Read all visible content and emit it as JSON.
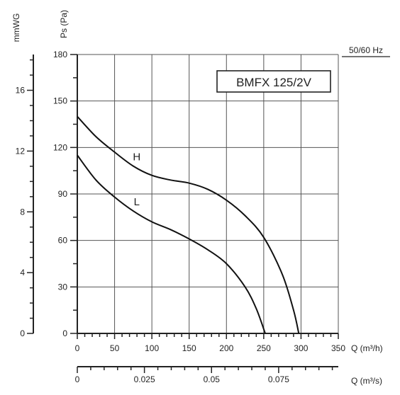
{
  "chart_data": {
    "type": "line",
    "title": "BMFX 125/2V",
    "frequency_label": "50/60 Hz",
    "y_left_unit": "mmWG",
    "ylabel": "Ps (Pa)",
    "xlabel": "Q (m³/h)",
    "x2label": "Q (m³/s)",
    "xlim": [
      0,
      350
    ],
    "ylim": [
      0,
      180
    ],
    "x_ticks": [
      0,
      50,
      100,
      150,
      200,
      250,
      300,
      350
    ],
    "y_ticks": [
      0,
      30,
      60,
      90,
      120,
      150,
      180
    ],
    "mmwg_ticks": [
      0,
      4,
      8,
      12,
      16
    ],
    "m3s_ticks": [
      "0",
      "0.025",
      "0.05",
      "0.075"
    ],
    "m3s_tick_values": [
      0,
      0.025,
      0.05,
      0.075
    ],
    "grid": true,
    "series": [
      {
        "name": "H",
        "x": [
          0,
          25,
          50,
          75,
          100,
          125,
          150,
          175,
          200,
          225,
          250,
          275,
          290,
          297
        ],
        "y": [
          140,
          127,
          117,
          108,
          102,
          99,
          97,
          93,
          86,
          76,
          62,
          38,
          15,
          0
        ]
      },
      {
        "name": "L",
        "x": [
          0,
          25,
          50,
          75,
          100,
          125,
          150,
          175,
          200,
          225,
          240,
          252
        ],
        "y": [
          115,
          99,
          88,
          79,
          72,
          67,
          61,
          54,
          45,
          30,
          16,
          0
        ]
      }
    ]
  }
}
